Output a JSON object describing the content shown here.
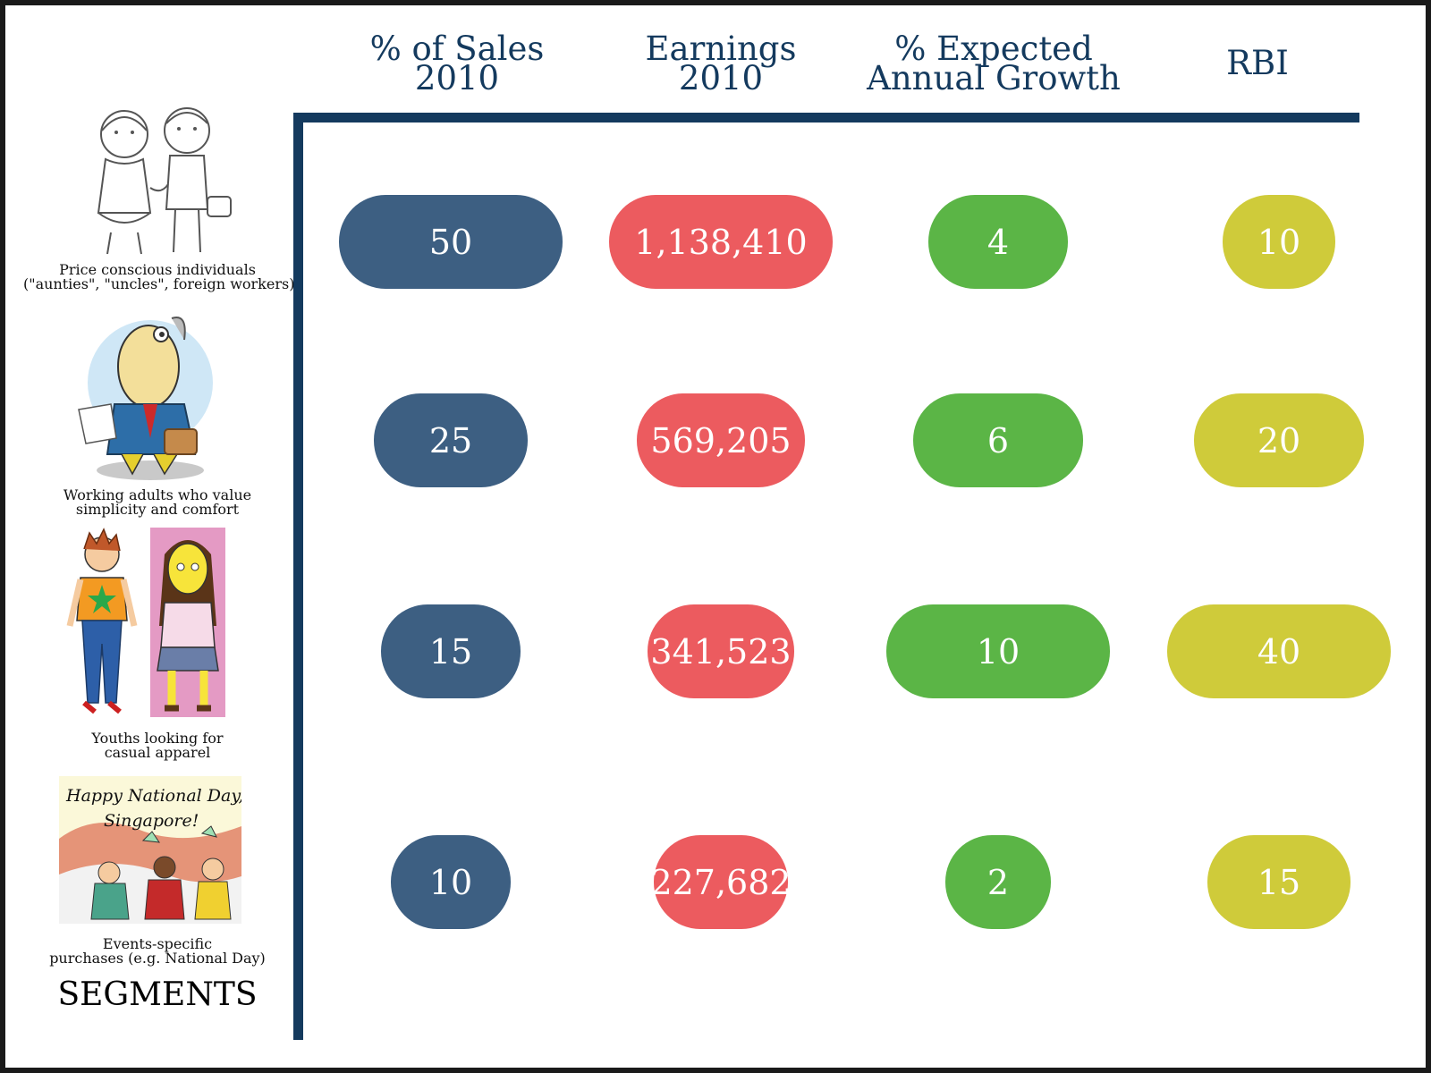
{
  "columns": [
    {
      "line1": "% of Sales",
      "line2": "2010"
    },
    {
      "line1": "Earnings",
      "line2": "2010"
    },
    {
      "line1": "% Expected",
      "line2": "Annual Growth"
    },
    {
      "line1": "RBI",
      "line2": ""
    }
  ],
  "segments": [
    {
      "line1": "Price conscious individuals",
      "line2": "(\"aunties\", \"uncles\", foreign workers)"
    },
    {
      "line1": "Working adults who value",
      "line2": "simplicity and comfort"
    },
    {
      "line1": "Youths looking for",
      "line2": "casual apparel"
    },
    {
      "line1": "Events-specific",
      "line2": "purchases (e.g. National Day)"
    }
  ],
  "segments_title": "SEGMENTS",
  "banner": {
    "line1": "Happy National Day,",
    "line2": "Singapore!"
  },
  "chart_data": {
    "type": "table",
    "columns": [
      "% of Sales 2010",
      "Earnings 2010",
      "% Expected Annual Growth",
      "RBI"
    ],
    "rows": [
      {
        "sales_pct": 50,
        "earnings": 1138410,
        "growth_pct": 4,
        "rbi": 10
      },
      {
        "sales_pct": 25,
        "earnings": 569205,
        "growth_pct": 6,
        "rbi": 20
      },
      {
        "sales_pct": 15,
        "earnings": 341523,
        "growth_pct": 10,
        "rbi": 40
      },
      {
        "sales_pct": 10,
        "earnings": 227682,
        "growth_pct": 2,
        "rbi": 15
      }
    ],
    "display": [
      [
        "50",
        "1,138,410",
        "4",
        "10"
      ],
      [
        "25",
        "569,205",
        "6",
        "20"
      ],
      [
        "15",
        "341,523",
        "10",
        "40"
      ],
      [
        "10",
        "227,682",
        "2",
        "15"
      ]
    ],
    "colors": [
      "#3d5f82",
      "#ec5b5f",
      "#5bb546",
      "#cfcb3a"
    ]
  }
}
